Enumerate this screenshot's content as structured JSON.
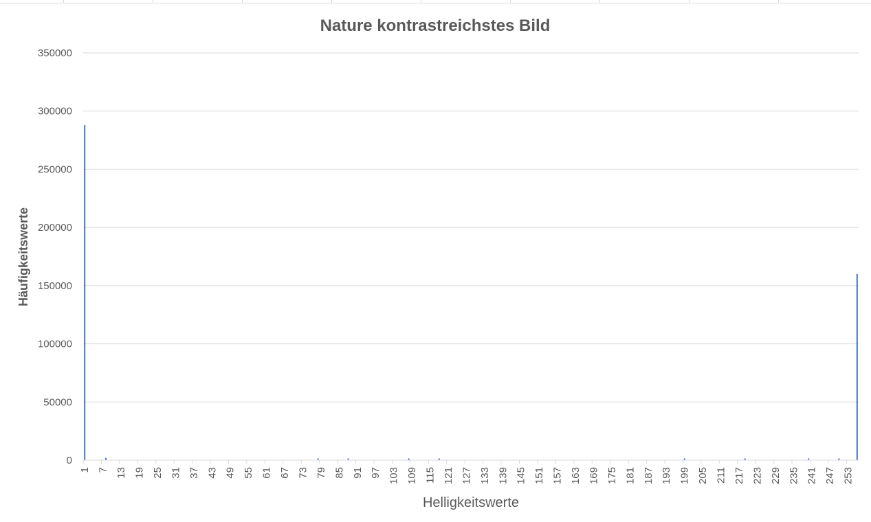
{
  "chart_data": {
    "type": "bar",
    "title": "Nature kontrastreichstes Bild",
    "xlabel": "Helligkeitswerte",
    "ylabel": "Häufigkeitswerte",
    "ylim": [
      0,
      350000
    ],
    "yticks": [
      0,
      50000,
      100000,
      150000,
      200000,
      250000,
      300000,
      350000
    ],
    "x_range": [
      1,
      256
    ],
    "xtick_labels": [
      "1",
      "7",
      "13",
      "19",
      "25",
      "31",
      "37",
      "43",
      "49",
      "55",
      "61",
      "67",
      "73",
      "79",
      "85",
      "91",
      "97",
      "103",
      "109",
      "115",
      "121",
      "127",
      "133",
      "139",
      "145",
      "151",
      "157",
      "163",
      "169",
      "175",
      "181",
      "187",
      "193",
      "199",
      "205",
      "211",
      "217",
      "223",
      "229",
      "235",
      "241",
      "247",
      "253"
    ],
    "grid": "horizontal",
    "legend": "none",
    "bar_color": "#4472c4",
    "series": [
      {
        "points": [
          {
            "x": 1,
            "y": 288000
          },
          {
            "x": 8,
            "y": 2000
          },
          {
            "x": 78,
            "y": 1500
          },
          {
            "x": 88,
            "y": 1500
          },
          {
            "x": 108,
            "y": 1500
          },
          {
            "x": 118,
            "y": 1500
          },
          {
            "x": 199,
            "y": 1500
          },
          {
            "x": 219,
            "y": 1500
          },
          {
            "x": 240,
            "y": 1500
          },
          {
            "x": 250,
            "y": 1500
          },
          {
            "x": 256,
            "y": 160000
          }
        ]
      }
    ]
  }
}
